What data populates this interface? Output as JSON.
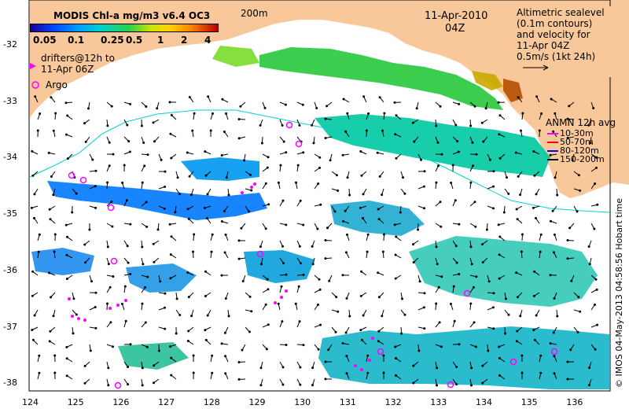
{
  "colorbar": {
    "title": "MODIS Chl-a mg/m3 v6.4 OC3",
    "ticks": [
      "0.05",
      "0.1",
      "0.25",
      "0.5",
      "1",
      "2",
      "4"
    ]
  },
  "contour_label": "200m",
  "date": "11-Apr-2010",
  "time": "04Z",
  "sealevel_legend": [
    "Altimetric sealevel",
    "(0.1m contours)",
    "and velocity for",
    "11-Apr 04Z",
    "0.5m/s (1kt 24h)"
  ],
  "drifters_legend": [
    "drifters@12h to",
    "11-Apr 06Z"
  ],
  "argo_label": "Argo",
  "anmn": {
    "title": "ANMN 12h avg",
    "items": [
      {
        "label": "10-30m",
        "color": "#ff00ff"
      },
      {
        "label": "50-70m",
        "color": "#ff0000"
      },
      {
        "label": "80-120m",
        "color": "#0000ff"
      },
      {
        "label": "150-200m",
        "color": "#000000"
      }
    ]
  },
  "lat_ticks": [
    "-32",
    "-33",
    "-34",
    "-35",
    "-36",
    "-37",
    "-38"
  ],
  "lon_ticks": [
    "124",
    "125",
    "126",
    "127",
    "128",
    "129",
    "130",
    "131",
    "132",
    "133",
    "134",
    "135",
    "136"
  ],
  "credit": "© IMOS 04-May-2013 04:58:56 Hobart time",
  "colors": {
    "land": "#f8c89b",
    "chl_low": "#0064ff",
    "chl_mid": "#00c8c8",
    "chl_high": "#28d228",
    "argo": "#ff00ff"
  }
}
